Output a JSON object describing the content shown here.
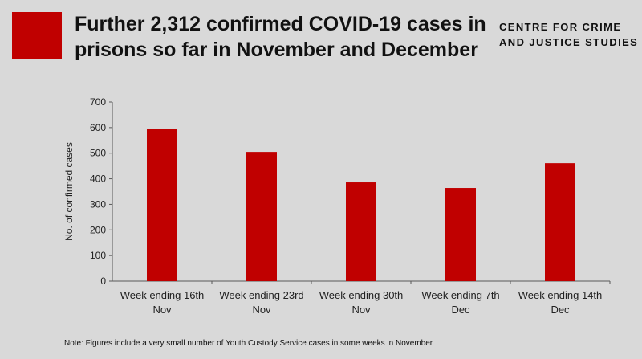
{
  "header": {
    "title": "Further 2,312 confirmed COVID-19 cases in prisons so far in November and December",
    "org_line1": "CENTRE FOR CRIME",
    "org_line2": "AND JUSTICE STUDIES"
  },
  "footer": {
    "note": "Note: Figures include a very small number of Youth Custody Service cases in some weeks in November"
  },
  "colors": {
    "bar": "#c00000",
    "background": "#d9d9d9",
    "brand": "#c00000"
  },
  "chart_data": {
    "type": "bar",
    "title": "",
    "xlabel": "",
    "ylabel": "No. of confirmed cases",
    "categories": [
      [
        "Week ending 16th",
        "Nov"
      ],
      [
        "Week ending 23rd",
        "Nov"
      ],
      [
        "Week ending 30th",
        "Nov"
      ],
      [
        "Week ending 7th",
        "Dec"
      ],
      [
        "Week ending 14th",
        "Dec"
      ]
    ],
    "values": [
      595,
      505,
      386,
      364,
      461
    ],
    "ylim": [
      0,
      700
    ],
    "yticks": [
      0,
      100,
      200,
      300,
      400,
      500,
      600,
      700
    ],
    "grid": false,
    "legend": "none"
  }
}
